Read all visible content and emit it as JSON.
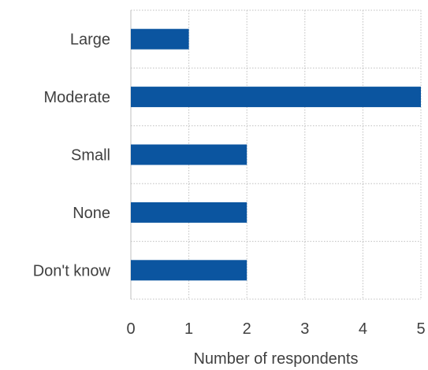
{
  "chart_data": {
    "type": "bar",
    "orientation": "horizontal",
    "categories": [
      "Large",
      "Moderate",
      "Small",
      "None",
      "Don't know"
    ],
    "values": [
      1,
      5,
      2,
      2,
      2
    ],
    "xlabel": "Number of respondents",
    "ylabel": "",
    "xlim": [
      0,
      5
    ],
    "xticks": [
      "0",
      "1",
      "2",
      "3",
      "4",
      "5"
    ],
    "grid": true,
    "bar_color": "#0b55a0"
  }
}
